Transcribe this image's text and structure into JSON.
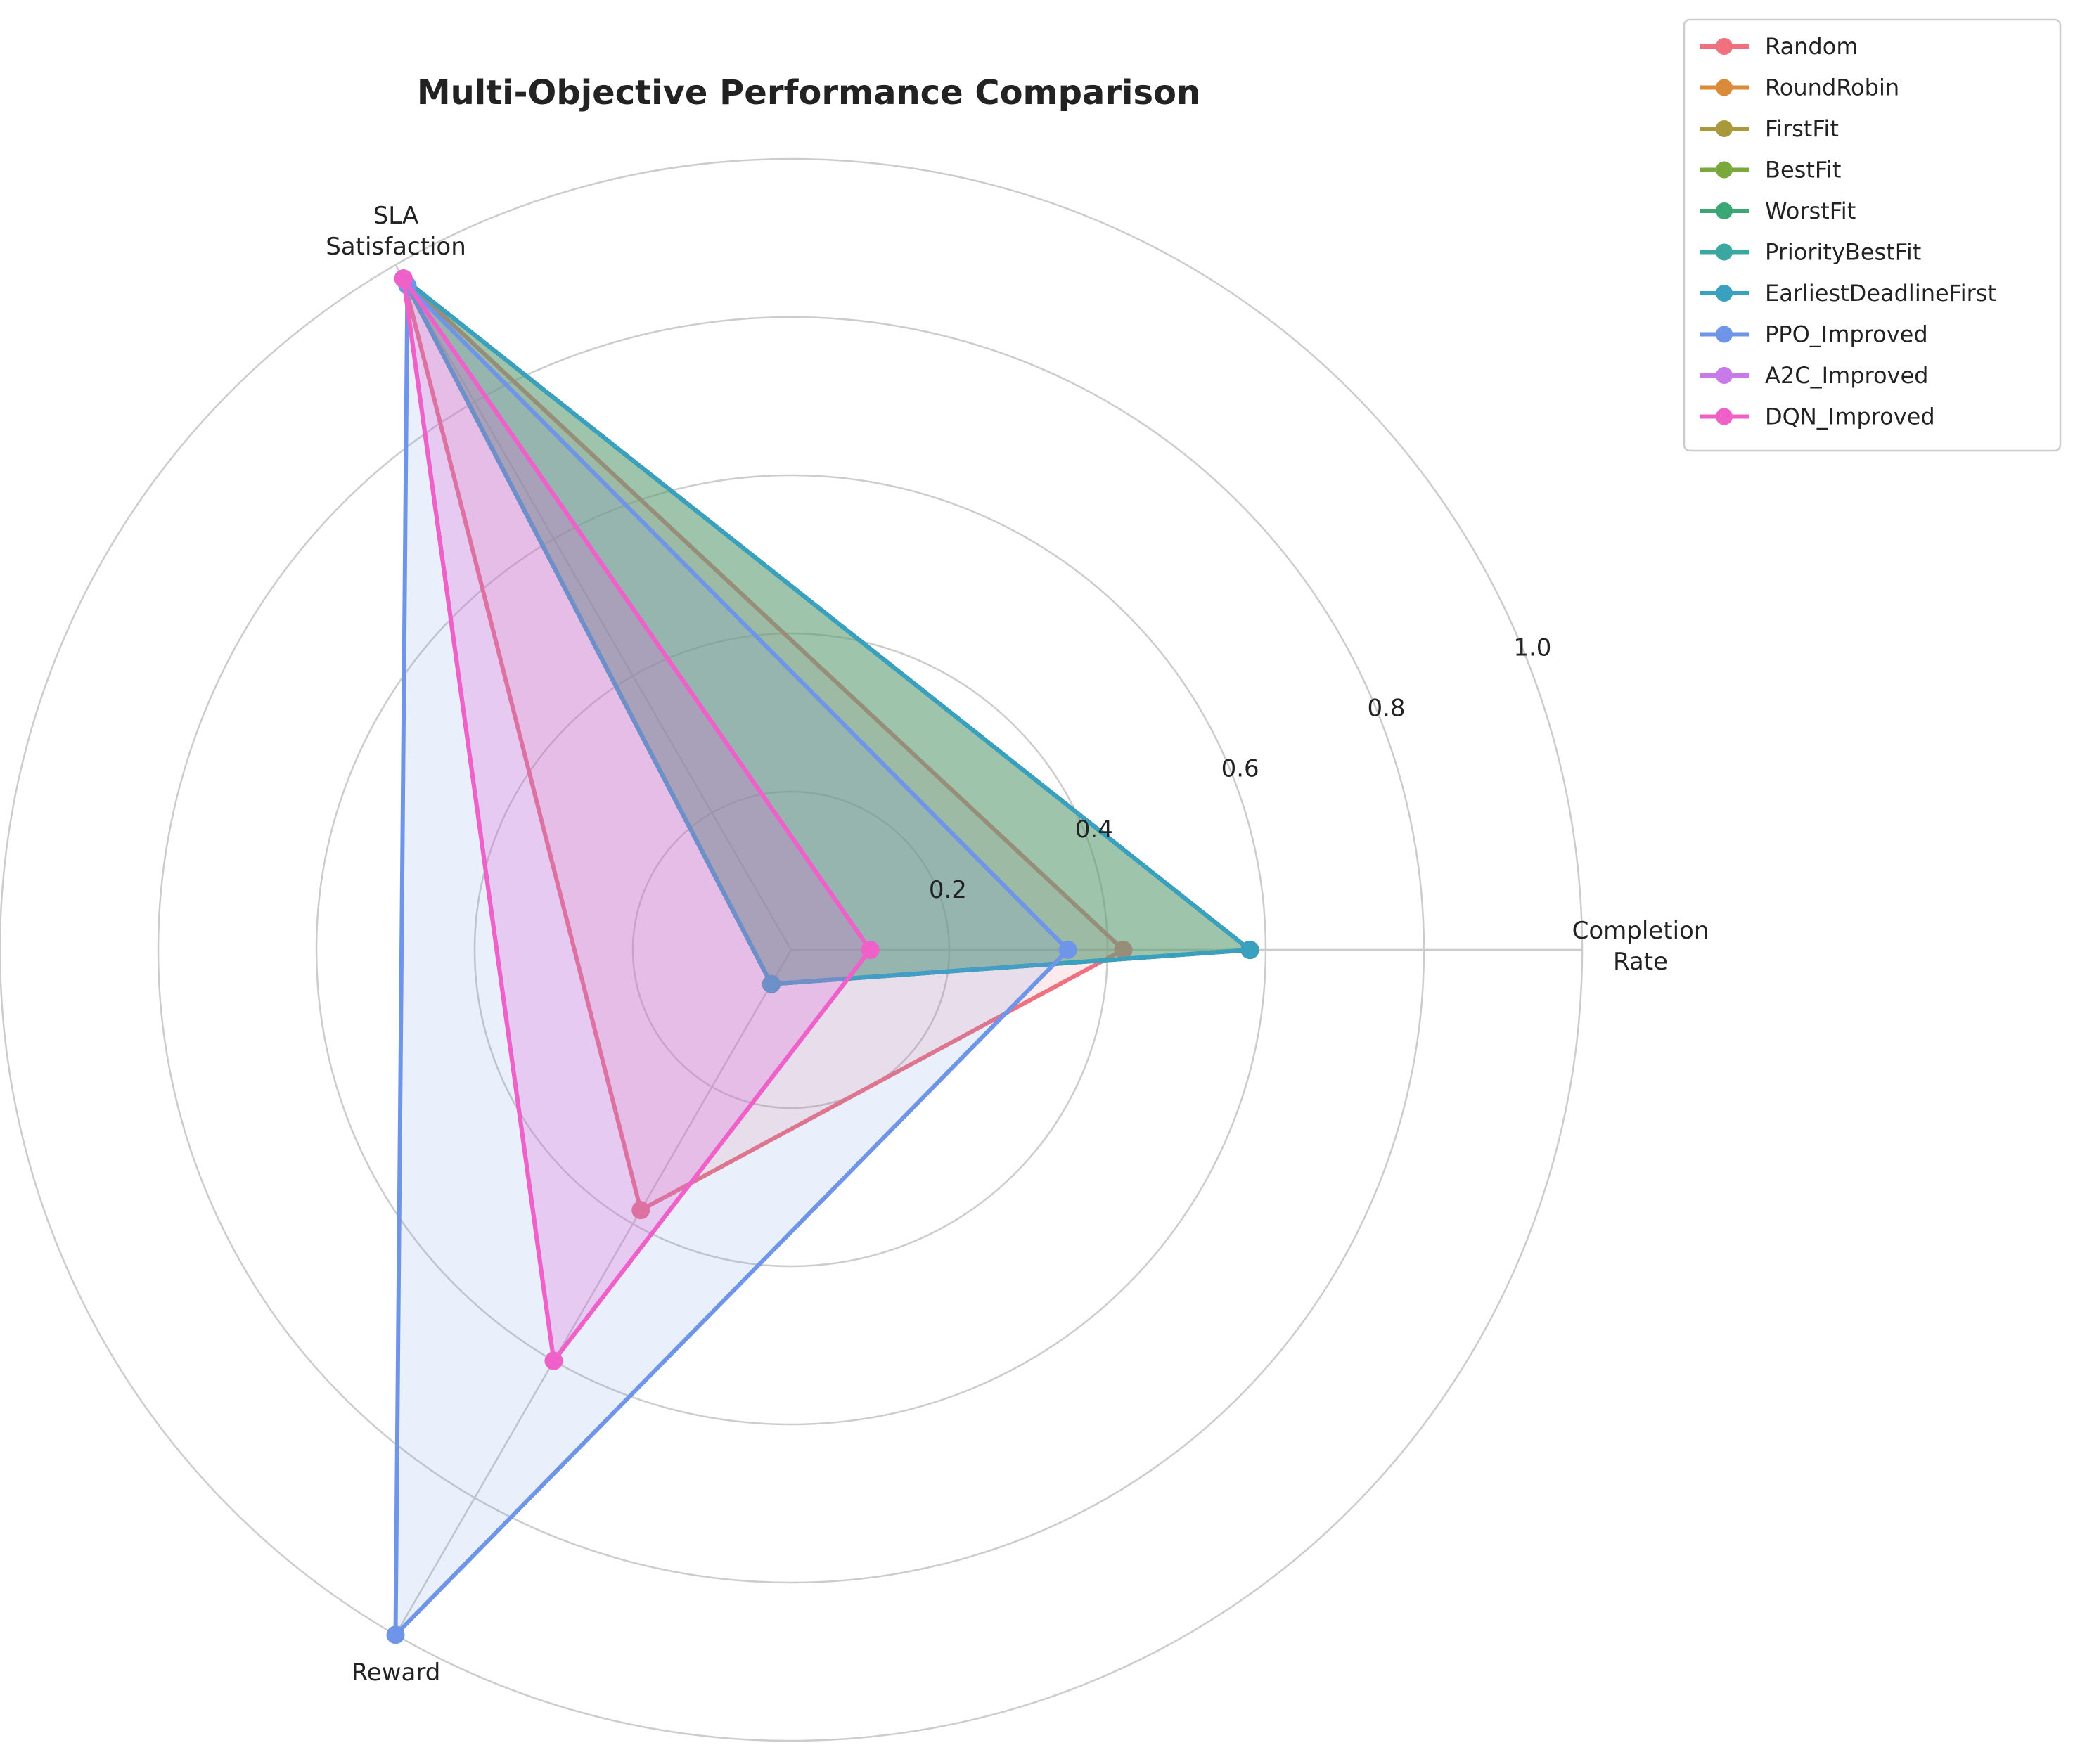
{
  "chart_data": {
    "type": "radar",
    "title": "Multi-Objective Performance Comparison",
    "axes": [
      {
        "lines": [
          "Completion",
          "Rate"
        ]
      },
      {
        "lines": [
          "SLA",
          "Satisfaction"
        ]
      },
      {
        "lines": [
          "Reward"
        ]
      }
    ],
    "rlim": [
      0,
      1.0
    ],
    "radial_ticks": [
      0.2,
      0.4,
      0.6,
      0.8,
      1.0
    ],
    "radial_tick_labels": [
      "0.2",
      "0.4",
      "0.6",
      "0.8",
      "1.0"
    ],
    "grid": true,
    "legend_position": "top-right outside",
    "series": [
      {
        "name": "Random",
        "color": "#f0707e",
        "values": [
          0.42,
          0.98,
          0.38
        ]
      },
      {
        "name": "RoundRobin",
        "color": "#d98a3a",
        "values": [
          0.58,
          0.98,
          0.05
        ]
      },
      {
        "name": "FirstFit",
        "color": "#a89a3a",
        "values": [
          0.58,
          0.98,
          0.05
        ]
      },
      {
        "name": "BestFit",
        "color": "#7aa83a",
        "values": [
          0.58,
          0.98,
          0.05
        ]
      },
      {
        "name": "WorstFit",
        "color": "#3aa874",
        "values": [
          0.58,
          0.98,
          0.05
        ]
      },
      {
        "name": "PriorityBestFit",
        "color": "#3aa8a0",
        "values": [
          0.58,
          0.98,
          0.05
        ]
      },
      {
        "name": "EarliestDeadlineFirst",
        "color": "#3aa0c0",
        "values": [
          0.58,
          0.98,
          0.05
        ]
      },
      {
        "name": "PPO_Improved",
        "color": "#6f95e8",
        "values": [
          0.35,
          0.97,
          1.0
        ]
      },
      {
        "name": "A2C_Improved",
        "color": "#c77ae8",
        "values": [
          0.1,
          0.98,
          0.6
        ]
      },
      {
        "name": "DQN_Improved",
        "color": "#ef60c8",
        "values": [
          0.1,
          0.98,
          0.6
        ]
      }
    ]
  }
}
